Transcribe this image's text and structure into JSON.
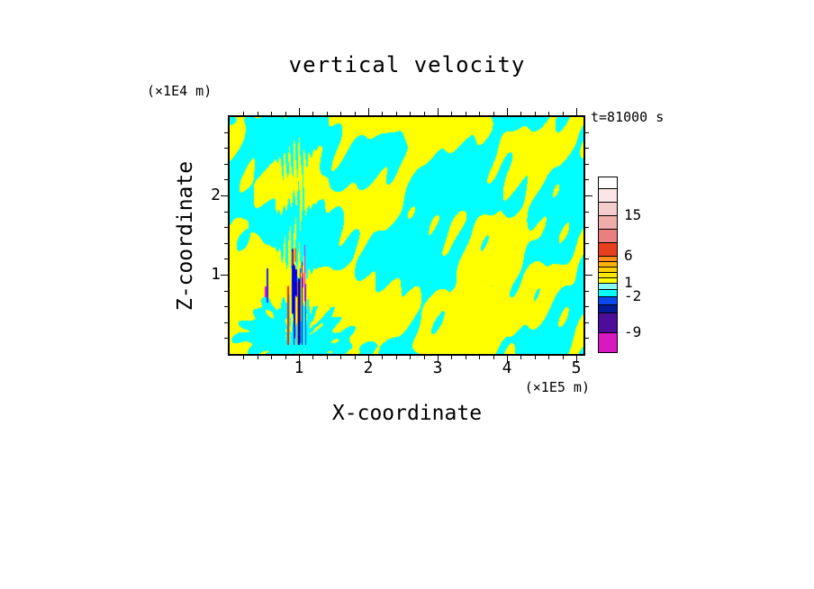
{
  "chart_data": {
    "type": "heatmap",
    "title": "vertical velocity",
    "time_label": "t=81000 s",
    "xlabel": "X-coordinate",
    "x_unit": "(×1E5 m)",
    "ylabel": "Z-coordinate",
    "y_unit": "(×1E4 m)",
    "x_range": [
      0,
      5.1
    ],
    "x_range_units": "1E5 m",
    "z_range": [
      0,
      3.0
    ],
    "z_range_units": "1E4 m",
    "x_tick_values": [
      1,
      2,
      3,
      4,
      5
    ],
    "x_tick_labels": [
      "1",
      "2",
      "3",
      "4",
      "5"
    ],
    "z_tick_values": [
      1,
      2
    ],
    "z_tick_labels": [
      "1",
      "2"
    ],
    "minor_ticks_per_major": 4,
    "field_colors": {
      "positive_weak": "#ffff00",
      "negative_weak": "#00ffff"
    },
    "field_description": "Turbulent 2-D vertical-velocity cross-section: interleaved weak-positive (yellow) and weak-negative (cyan) cells fill the domain; a narrow column of strong alternating updrafts/downdrafts near x ≈ 1 (×1E5 m) in the lower half shows fine vertical stripes of red/orange (strong positive) and blue/navy/magenta (strong negative), with a striped fan spreading upward from the column.",
    "noise_seed": 7,
    "colorbar": {
      "tick_labels": [
        "15",
        "6",
        "1",
        "-2",
        "-9"
      ],
      "segments": [
        {
          "color": "#ffffff",
          "h": 12
        },
        {
          "color": "#fae6e6",
          "h": 14
        },
        {
          "color": "#f5cdcd",
          "h": 14,
          "label": "15"
        },
        {
          "color": "#f0abab",
          "h": 14
        },
        {
          "color": "#e97f7f",
          "h": 14
        },
        {
          "color": "#e8401f",
          "h": 14,
          "label": "6"
        },
        {
          "color": "#fe8b1c",
          "h": 5
        },
        {
          "color": "#ffb300",
          "h": 5
        },
        {
          "color": "#ffd000",
          "h": 5
        },
        {
          "color": "#ffe800",
          "h": 5
        },
        {
          "color": "#ffff00",
          "h": 5,
          "label": "1"
        },
        {
          "color": "#86fdff",
          "h": 6
        },
        {
          "color": "#00ffff",
          "h": 7,
          "label": "-2"
        },
        {
          "color": "#0a49f0",
          "h": 8
        },
        {
          "color": "#051a99",
          "h": 8
        },
        {
          "color": "#4c0d9a",
          "h": 21,
          "label": "-9"
        },
        {
          "color": "#d818c0",
          "h": 21
        }
      ]
    }
  }
}
